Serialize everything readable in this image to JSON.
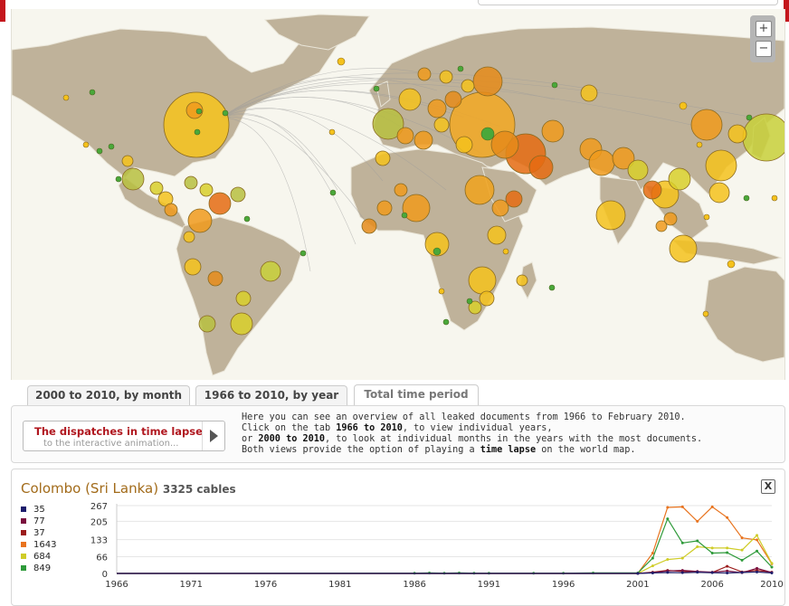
{
  "zoom": {
    "plus_label": "+",
    "minus_label": "−"
  },
  "tabs": [
    {
      "label": "2000 to 2010, by month"
    },
    {
      "label": "1966 to 2010, by year"
    },
    {
      "label": "Total time period"
    }
  ],
  "timelapse": {
    "title": "The dispatches in time lapse",
    "subtitle": "to the interactive animation..."
  },
  "info": {
    "line1": "Here you can see an overview of all leaked documents from 1966 to February 2010.",
    "line2_pre": "Click on the tab ",
    "line2_bold": "1966 to 2010",
    "line2_post": ", to view individual years,",
    "line3_pre": "or ",
    "line3_bold": "2000 to 2010",
    "line3_post": ", to look at individual months in the years with the most documents.",
    "line4_pre": "Both views provide the option of playing a ",
    "line4_bold": "time lapse",
    "line4_post": " on the world map."
  },
  "detail": {
    "city": "Colombo (Sri Lanka)",
    "count": "3325 cables",
    "close_label": "X"
  },
  "legend": [
    {
      "value": "35",
      "color": "#1c1c6b"
    },
    {
      "value": "77",
      "color": "#7a0f3d"
    },
    {
      "value": "37",
      "color": "#9b1b1b"
    },
    {
      "value": "1643",
      "color": "#e8731e"
    },
    {
      "value": "684",
      "color": "#cfcc27"
    },
    {
      "value": "849",
      "color": "#2e9a3a"
    }
  ],
  "chart_data": {
    "type": "line",
    "title": "",
    "xlabel": "",
    "ylabel": "",
    "x_ticks": [
      "1966",
      "1971",
      "1976",
      "1981",
      "1986",
      "1991",
      "1996",
      "2001",
      "2006",
      "2010"
    ],
    "y_ticks": [
      "0",
      "66",
      "133",
      "205",
      "267"
    ],
    "ylim": [
      0,
      267
    ],
    "xlim": [
      1966,
      2010
    ],
    "series": [
      {
        "color": "#e8731e",
        "values": [
          [
            1966,
            0
          ],
          [
            2001,
            0
          ],
          [
            2002,
            80
          ],
          [
            2003,
            260
          ],
          [
            2004,
            262
          ],
          [
            2005,
            205
          ],
          [
            2006,
            262
          ],
          [
            2007,
            220
          ],
          [
            2008,
            140
          ],
          [
            2009,
            132
          ],
          [
            2010,
            38
          ]
        ]
      },
      {
        "color": "#cfcc27",
        "values": [
          [
            1966,
            0
          ],
          [
            2001,
            0
          ],
          [
            2002,
            30
          ],
          [
            2003,
            55
          ],
          [
            2004,
            60
          ],
          [
            2005,
            105
          ],
          [
            2006,
            100
          ],
          [
            2007,
            100
          ],
          [
            2008,
            92
          ],
          [
            2009,
            150
          ],
          [
            2010,
            40
          ]
        ]
      },
      {
        "color": "#2e9a3a",
        "values": [
          [
            1966,
            0
          ],
          [
            1986,
            1
          ],
          [
            1987,
            2
          ],
          [
            1988,
            1
          ],
          [
            1989,
            2
          ],
          [
            1990,
            1
          ],
          [
            1991,
            1
          ],
          [
            1994,
            1
          ],
          [
            1996,
            1
          ],
          [
            1998,
            2
          ],
          [
            2001,
            2
          ],
          [
            2002,
            60
          ],
          [
            2003,
            215
          ],
          [
            2004,
            120
          ],
          [
            2005,
            128
          ],
          [
            2006,
            80
          ],
          [
            2007,
            82
          ],
          [
            2008,
            52
          ],
          [
            2009,
            88
          ],
          [
            2010,
            25
          ]
        ]
      },
      {
        "color": "#9b1b1b",
        "values": [
          [
            1966,
            0
          ],
          [
            2001,
            0
          ],
          [
            2002,
            5
          ],
          [
            2003,
            12
          ],
          [
            2004,
            8
          ],
          [
            2005,
            6
          ],
          [
            2006,
            4
          ],
          [
            2007,
            28
          ],
          [
            2008,
            6
          ],
          [
            2009,
            12
          ],
          [
            2010,
            5
          ]
        ]
      },
      {
        "color": "#7a0f3d",
        "values": [
          [
            1966,
            0
          ],
          [
            2001,
            0
          ],
          [
            2002,
            3
          ],
          [
            2003,
            10
          ],
          [
            2004,
            12
          ],
          [
            2005,
            8
          ],
          [
            2006,
            5
          ],
          [
            2007,
            10
          ],
          [
            2008,
            3
          ],
          [
            2009,
            20
          ],
          [
            2010,
            4
          ]
        ]
      },
      {
        "color": "#1c1c6b",
        "values": [
          [
            1966,
            0
          ],
          [
            2001,
            0
          ],
          [
            2002,
            2
          ],
          [
            2003,
            4
          ],
          [
            2004,
            3
          ],
          [
            2005,
            5
          ],
          [
            2006,
            3
          ],
          [
            2007,
            2
          ],
          [
            2008,
            4
          ],
          [
            2009,
            6
          ],
          [
            2010,
            2
          ]
        ]
      }
    ]
  }
}
